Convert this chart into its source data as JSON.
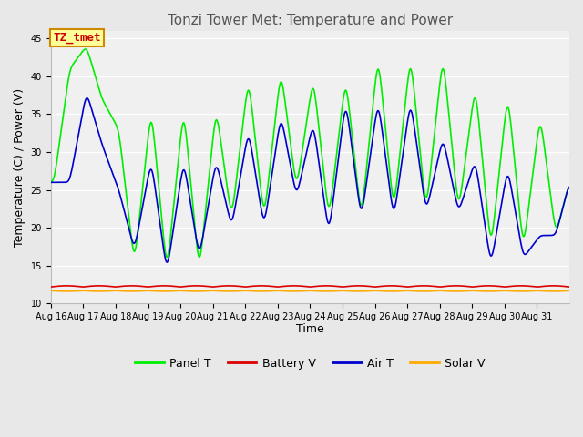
{
  "title": "Tonzi Tower Met: Temperature and Power",
  "xlabel": "Time",
  "ylabel": "Temperature (C) / Power (V)",
  "ylim": [
    10,
    46
  ],
  "bg_color": "#e8e8e8",
  "plot_bg_color": "#f0f0f0",
  "annotation_text": "TZ_tmet",
  "annotation_bg": "#ffff99",
  "annotation_fg": "#cc0000",
  "annotation_border": "#cc8800",
  "legend_labels": [
    "Panel T",
    "Battery V",
    "Air T",
    "Solar V"
  ],
  "legend_colors": [
    "#00ee00",
    "#dd0000",
    "#0000cc",
    "#ffaa00"
  ],
  "xtick_labels": [
    "Aug 16",
    "Aug 17",
    "Aug 18",
    "Aug 19",
    "Aug 20",
    "Aug 21",
    "Aug 22",
    "Aug 23",
    "Aug 24",
    "Aug 25",
    "Aug 26",
    "Aug 27",
    "Aug 28",
    "Aug 29",
    "Aug 30",
    "Aug 31"
  ],
  "ytick_labels": [
    "10",
    "15",
    "20",
    "25",
    "30",
    "35",
    "40",
    "45"
  ],
  "ytick_positions": [
    10,
    15,
    20,
    25,
    30,
    35,
    40,
    45
  ],
  "panel_t_data": [
    26,
    41,
    44,
    37,
    33,
    15,
    36,
    14,
    36,
    14,
    36,
    21,
    40,
    21,
    41,
    25,
    40,
    21,
    40,
    21,
    43,
    22,
    43,
    22,
    43,
    22,
    39,
    17,
    38,
    17,
    35,
    19
  ],
  "air_t_data": [
    26,
    26,
    38,
    31,
    25,
    17,
    29,
    14,
    29,
    16,
    29,
    20,
    33,
    20,
    35,
    24,
    34,
    19,
    37,
    21,
    37,
    21,
    37,
    22,
    32,
    22,
    29,
    15,
    28,
    16,
    19,
    19
  ],
  "battery_v": 12.2,
  "solar_v": 11.7,
  "n_days": 16,
  "pts_per_day": 48,
  "line_width": 1.2,
  "title_fontsize": 11,
  "tick_fontsize": 7,
  "ylabel_fontsize": 9,
  "xlabel_fontsize": 9,
  "legend_fontsize": 9
}
